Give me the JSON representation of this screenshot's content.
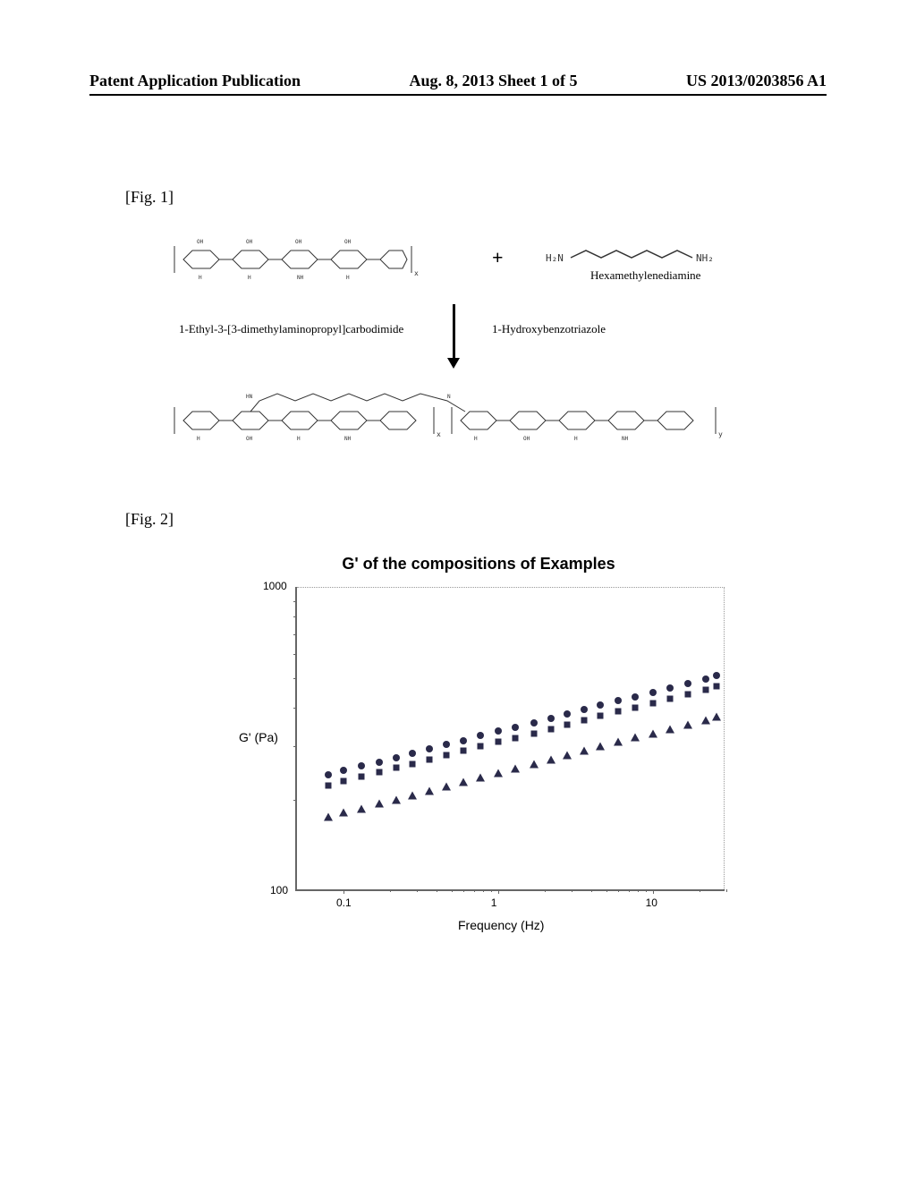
{
  "header": {
    "left": "Patent Application Publication",
    "center": "Aug. 8, 2013  Sheet 1 of 5",
    "right": "US 2013/0203856 A1"
  },
  "fig1": {
    "label": "[Fig. 1]",
    "plus": "+",
    "hmd_formula_left": "H₂N",
    "hmd_formula_right": "NH₂",
    "hmd_label": "Hexamethylenediamine",
    "reagent_left": "1-Ethyl-3-[3-dimethylaminopropyl]carbodimide",
    "reagent_right": "1-Hydroxybenzotriazole"
  },
  "fig2": {
    "label": "[Fig. 2]"
  },
  "chart": {
    "type": "scatter",
    "title": "G' of the compositions of Examples",
    "ylabel": "G' (Pa)",
    "xlabel": "Frequency (Hz)",
    "ylim": [
      100,
      1000
    ],
    "xlim": [
      0.05,
      30
    ],
    "ytick_labels": [
      "100",
      "1000"
    ],
    "xtick_labels": [
      "0.1",
      "1",
      "10"
    ],
    "xtick_positions": [
      0.1,
      1,
      10
    ],
    "background_color": "#ffffff",
    "grid_color": "#cccccc",
    "marker_color": "#2a2a4a",
    "marker_size": 8,
    "series": [
      {
        "name": "circle",
        "marker": "circle",
        "x": [
          0.08,
          0.1,
          0.13,
          0.17,
          0.22,
          0.28,
          0.36,
          0.46,
          0.6,
          0.77,
          1.0,
          1.3,
          1.7,
          2.2,
          2.8,
          3.6,
          4.6,
          6.0,
          7.7,
          10,
          13,
          17,
          22,
          26
        ],
        "y": [
          242,
          250,
          258,
          266,
          275,
          284,
          293,
          303,
          313,
          324,
          335,
          346,
          358,
          370,
          382,
          395,
          408,
          422,
          436,
          450,
          465,
          481,
          497,
          510
        ]
      },
      {
        "name": "square",
        "marker": "square",
        "x": [
          0.08,
          0.1,
          0.13,
          0.17,
          0.22,
          0.28,
          0.36,
          0.46,
          0.6,
          0.77,
          1.0,
          1.3,
          1.7,
          2.2,
          2.8,
          3.6,
          4.6,
          6.0,
          7.7,
          10,
          13,
          17,
          22,
          26
        ],
        "y": [
          223,
          230,
          238,
          246,
          254,
          262,
          271,
          280,
          289,
          299,
          309,
          319,
          330,
          341,
          352,
          364,
          376,
          389,
          402,
          415,
          429,
          443,
          458,
          470
        ]
      },
      {
        "name": "triangle",
        "marker": "triangle",
        "x": [
          0.08,
          0.1,
          0.13,
          0.17,
          0.22,
          0.28,
          0.36,
          0.46,
          0.6,
          0.77,
          1.0,
          1.3,
          1.7,
          2.2,
          2.8,
          3.6,
          4.6,
          6.0,
          7.7,
          10,
          13,
          17,
          22,
          26
        ],
        "y": [
          175,
          181,
          187,
          194,
          200,
          207,
          214,
          221,
          229,
          237,
          245,
          253,
          262,
          271,
          280,
          289,
          299,
          309,
          320,
          330,
          341,
          353,
          365,
          375
        ]
      }
    ]
  }
}
